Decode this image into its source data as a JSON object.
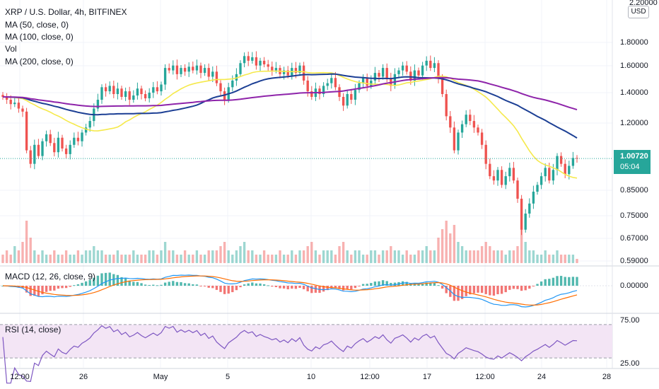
{
  "header": {
    "symbol_line": "XRP / U.S. Dollar, 4h, BITFINEX",
    "indicators": [
      "MA (50, close, 0)",
      "MA (100, close, 0)",
      "Vol",
      "MA (200, close, 0)"
    ],
    "macd_label": "MACD (12, 26, close, 9)",
    "rsi_label": "RSI (14, close)",
    "currency": "USD"
  },
  "last_price": {
    "value": "1.00720",
    "countdown": "05:04",
    "color": "#26a69a"
  },
  "colors": {
    "up": "#26a69a",
    "down": "#ef5350",
    "ma50": "#f5e94b",
    "ma100": "#1c3f94",
    "ma200": "#8e24aa",
    "macd": "#2196f3",
    "signal": "#ff6d00",
    "rsi": "#7e57c2",
    "rsi_band": "#f3e5f5"
  },
  "chart_data": [
    {
      "type": "candlestick",
      "title": "XRP / U.S. Dollar, 4h, BITFINEX",
      "x_tick_labels": [
        "12:00",
        "26",
        "May",
        "5",
        "10",
        "12:00",
        "17",
        "12:00",
        "24",
        "28"
      ],
      "y_tick_labels": [
        "2.20000",
        "1.80000",
        "1.60000",
        "1.40000",
        "1.20000",
        "1.00720",
        "0.85000",
        "0.75000",
        "0.67000",
        "0.59000"
      ],
      "y_scale": "log",
      "ylim": [
        0.59,
        2.2
      ],
      "candles": {
        "bars_per_day": 6,
        "close": [
          1.38,
          1.36,
          1.33,
          1.34,
          1.3,
          1.28,
          1.05,
          0.98,
          1.08,
          1.02,
          1.1,
          1.14,
          1.09,
          1.04,
          1.12,
          1.06,
          1.03,
          1.08,
          1.12,
          1.1,
          1.15,
          1.18,
          1.22,
          1.3,
          1.36,
          1.45,
          1.42,
          1.46,
          1.4,
          1.44,
          1.38,
          1.42,
          1.36,
          1.39,
          1.44,
          1.4,
          1.37,
          1.41,
          1.45,
          1.42,
          1.47,
          1.6,
          1.58,
          1.62,
          1.55,
          1.6,
          1.57,
          1.61,
          1.58,
          1.62,
          1.56,
          1.6,
          1.53,
          1.57,
          1.48,
          1.42,
          1.36,
          1.45,
          1.5,
          1.55,
          1.64,
          1.7,
          1.66,
          1.69,
          1.62,
          1.66,
          1.63,
          1.61,
          1.58,
          1.6,
          1.55,
          1.58,
          1.54,
          1.6,
          1.56,
          1.62,
          1.5,
          1.42,
          1.38,
          1.44,
          1.4,
          1.46,
          1.48,
          1.52,
          1.45,
          1.38,
          1.32,
          1.4,
          1.36,
          1.43,
          1.48,
          1.52,
          1.46,
          1.5,
          1.56,
          1.53,
          1.6,
          1.52,
          1.46,
          1.55,
          1.58,
          1.62,
          1.57,
          1.5,
          1.58,
          1.54,
          1.62,
          1.66,
          1.6,
          1.64,
          1.52,
          1.4,
          1.25,
          1.18,
          1.05,
          1.15,
          1.2,
          1.26,
          1.22,
          1.18,
          1.15,
          1.08,
          0.98,
          0.92,
          0.9,
          0.95,
          0.88,
          0.92,
          0.96,
          0.9,
          0.82,
          0.7,
          0.76,
          0.8,
          0.85,
          0.88,
          0.92,
          0.96,
          0.9,
          0.95,
          1.02,
          0.98,
          0.93,
          0.97,
          1.01,
          1.007
        ],
        "volume_scale": "relative",
        "volume": [
          0.2,
          0.3,
          0.2,
          0.4,
          0.3,
          0.5,
          1.0,
          0.6,
          0.3,
          0.2,
          0.3,
          0.2,
          0.2,
          0.3,
          0.2,
          0.2,
          0.3,
          0.2,
          0.2,
          0.3,
          0.2,
          0.3,
          0.3,
          0.4,
          0.3,
          0.3,
          0.2,
          0.2,
          0.2,
          0.3,
          0.2,
          0.2,
          0.2,
          0.3,
          0.2,
          0.2,
          0.2,
          0.3,
          0.3,
          0.2,
          0.3,
          0.5,
          0.3,
          0.3,
          0.2,
          0.2,
          0.3,
          0.2,
          0.2,
          0.3,
          0.2,
          0.2,
          0.3,
          0.3,
          0.3,
          0.4,
          0.5,
          0.3,
          0.2,
          0.3,
          0.4,
          0.5,
          0.3,
          0.3,
          0.2,
          0.2,
          0.3,
          0.2,
          0.2,
          0.2,
          0.3,
          0.2,
          0.2,
          0.3,
          0.2,
          0.3,
          0.3,
          0.4,
          0.5,
          0.3,
          0.2,
          0.3,
          0.3,
          0.3,
          0.2,
          0.4,
          0.5,
          0.3,
          0.2,
          0.3,
          0.3,
          0.2,
          0.2,
          0.3,
          0.3,
          0.2,
          0.3,
          0.3,
          0.4,
          0.3,
          0.3,
          0.2,
          0.3,
          0.2,
          0.2,
          0.3,
          0.3,
          0.4,
          0.3,
          0.3,
          0.6,
          0.8,
          1.0,
          0.7,
          0.9,
          0.5,
          0.4,
          0.3,
          0.3,
          0.3,
          0.3,
          0.4,
          0.5,
          0.4,
          0.3,
          0.3,
          0.3,
          0.2,
          0.3,
          0.3,
          0.4,
          0.8,
          0.5,
          0.3,
          0.3,
          0.2,
          0.2,
          0.3,
          0.2,
          0.2,
          0.3,
          0.2,
          0.2,
          0.2,
          0.2,
          0.1
        ]
      },
      "series": [
        {
          "name": "MA (50, close, 0)",
          "color": "#f5e94b"
        },
        {
          "name": "MA (100, close, 0)",
          "color": "#1c3f94"
        },
        {
          "name": "MA (200, close, 0)",
          "color": "#8e24aa"
        },
        {
          "name": "Vol"
        }
      ]
    },
    {
      "type": "line",
      "title": "MACD (12, 26, close, 9)",
      "y_tick_labels": [
        "0.00000"
      ],
      "series": [
        {
          "name": "MACD",
          "color": "#2196f3"
        },
        {
          "name": "Signal",
          "color": "#ff6d00"
        },
        {
          "name": "Histogram"
        }
      ]
    },
    {
      "type": "line",
      "title": "RSI (14, close)",
      "y_tick_labels": [
        "75.00",
        "25.00"
      ],
      "ylim": [
        20,
        80
      ],
      "band": [
        30,
        70
      ],
      "series": [
        {
          "name": "RSI",
          "color": "#7e57c2"
        }
      ]
    }
  ]
}
